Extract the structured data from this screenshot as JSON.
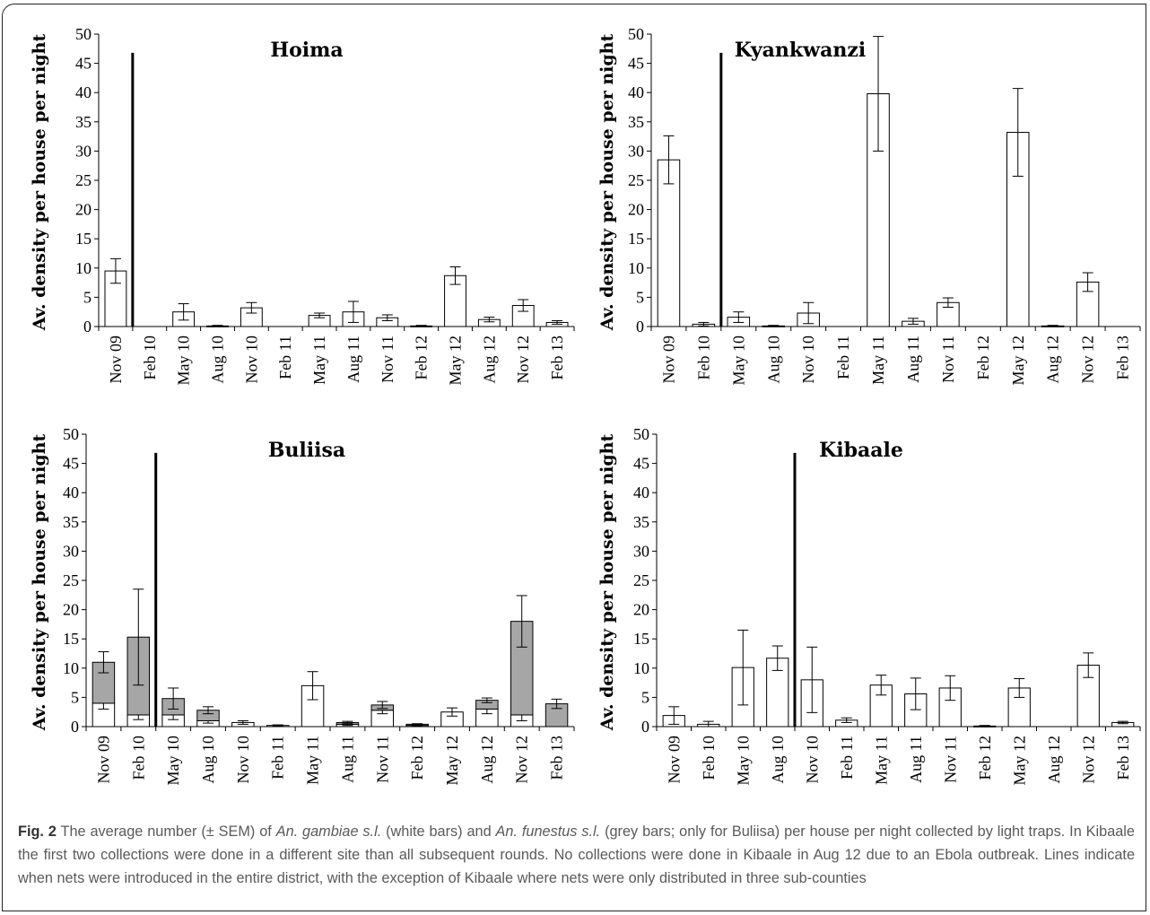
{
  "chart_data": [
    {
      "type": "bar",
      "title": "Hoima",
      "ylabel": "Av. density per house per night",
      "categories": [
        "Nov 09",
        "Feb 10",
        "May 10",
        "Aug 10",
        "Nov 10",
        "Feb 11",
        "May 11",
        "Aug 11",
        "Nov 11",
        "Feb 12",
        "May 12",
        "Aug 12",
        "Nov 12",
        "Feb 13"
      ],
      "ylim": [
        0,
        50
      ],
      "yticks": [
        "0",
        "5",
        "10",
        "15",
        "20",
        "25",
        "30",
        "35",
        "40",
        "45",
        "50"
      ],
      "series": [
        {
          "values": [
            9.5,
            0,
            2.5,
            0.1,
            3.2,
            0,
            1.9,
            2.5,
            1.5,
            0.1,
            8.7,
            1.2,
            3.6,
            0.7
          ],
          "errors": [
            2.1,
            0,
            1.4,
            0.1,
            0.9,
            0,
            0.4,
            1.8,
            0.5,
            0.1,
            1.5,
            0.4,
            1.0,
            0.3
          ]
        }
      ],
      "nets_line_after_index": 0
    },
    {
      "type": "bar",
      "title": "Kyankwanzi",
      "ylabel": "Av. density per house per night",
      "categories": [
        "Nov 09",
        "Feb 10",
        "May 10",
        "Aug 10",
        "Nov 10",
        "Feb 11",
        "May 11",
        "Aug 11",
        "Nov 11",
        "Feb 12",
        "May 12",
        "Aug 12",
        "Nov 12",
        "Feb 13"
      ],
      "ylim": [
        0,
        50
      ],
      "yticks": [
        "0",
        "5",
        "10",
        "15",
        "20",
        "25",
        "30",
        "35",
        "40",
        "45",
        "50"
      ],
      "series": [
        {
          "values": [
            28.5,
            0.4,
            1.6,
            0.1,
            2.3,
            0,
            39.8,
            0.9,
            4.1,
            0,
            33.2,
            0.1,
            7.6,
            0
          ],
          "errors": [
            4.1,
            0.3,
            0.9,
            0.1,
            1.8,
            0,
            9.8,
            0.5,
            0.8,
            0,
            7.5,
            0.1,
            1.6,
            0
          ]
        }
      ],
      "nets_line_after_index": 1
    },
    {
      "type": "bar",
      "title": "Buliisa",
      "ylabel": "Av. density per house per night",
      "categories": [
        "Nov 09",
        "Feb 10",
        "May 10",
        "Aug 10",
        "Nov 10",
        "Feb 11",
        "May 11",
        "Aug 11",
        "Nov 11",
        "Feb 12",
        "May 12",
        "Aug 12",
        "Nov 12",
        "Feb 13"
      ],
      "ylim": [
        0,
        50
      ],
      "yticks": [
        "0",
        "5",
        "10",
        "15",
        "20",
        "25",
        "30",
        "35",
        "40",
        "45",
        "50"
      ],
      "series": [
        {
          "values": [
            4,
            2,
            2,
            1,
            0.7,
            0.2,
            7,
            0.4,
            2.8,
            0.2,
            2.5,
            3,
            2,
            0
          ],
          "errors": [
            1.0,
            0.8,
            0.8,
            0.4,
            0.3,
            0.1,
            2.4,
            0.2,
            0.6,
            0.1,
            0.7,
            0.8,
            1.0,
            0
          ]
        },
        {
          "values": [
            7,
            13.3,
            2.8,
            1.8,
            0,
            0,
            0,
            0.3,
            0.9,
            0.2,
            0,
            1.5,
            16,
            3.9
          ],
          "errors": [
            1.8,
            8.2,
            1.8,
            0.6,
            0,
            0,
            0,
            0.2,
            0.6,
            0.1,
            0,
            0.4,
            4.4,
            0.8
          ]
        }
      ],
      "nets_line_after_index": 1
    },
    {
      "type": "bar",
      "title": "Kibaale",
      "ylabel": "Av. density per house per night",
      "categories": [
        "Nov 09",
        "Feb 10",
        "May 10",
        "Aug 10",
        "Nov 10",
        "Feb 11",
        "May 11",
        "Aug 11",
        "Nov 11",
        "Feb 12",
        "May 12",
        "Aug 12",
        "Nov 12",
        "Feb 13"
      ],
      "ylim": [
        0,
        50
      ],
      "yticks": [
        "0",
        "5",
        "10",
        "15",
        "20",
        "25",
        "30",
        "35",
        "40",
        "45",
        "50"
      ],
      "series": [
        {
          "values": [
            1.9,
            0.4,
            10.1,
            11.7,
            8,
            1.1,
            7.1,
            5.6,
            6.6,
            0.1,
            6.6,
            0,
            10.5,
            0.7
          ],
          "errors": [
            1.5,
            0.5,
            6.4,
            2.1,
            5.6,
            0.4,
            1.7,
            2.7,
            2.1,
            0.1,
            1.6,
            0,
            2.1,
            0.2
          ]
        }
      ],
      "nets_line_after_index": 3
    }
  ],
  "caption": {
    "label": "Fig. 2",
    "t1": " The average number (± SEM) of ",
    "sp1": "An. gambiae s.l.",
    "t2": " (white bars) and ",
    "sp2": "An. funestus s.l.",
    "t3": " (grey bars; only for Buliisa) per house per night collected by light traps. In Kibaale the first two collections were done in a different site than all subsequent rounds. No collections were done in Kibaale in Aug 12 due to an Ebola outbreak. Lines indicate when nets were introduced in the entire district, with the exception of Kibaale where nets were only distributed in three sub-counties"
  }
}
